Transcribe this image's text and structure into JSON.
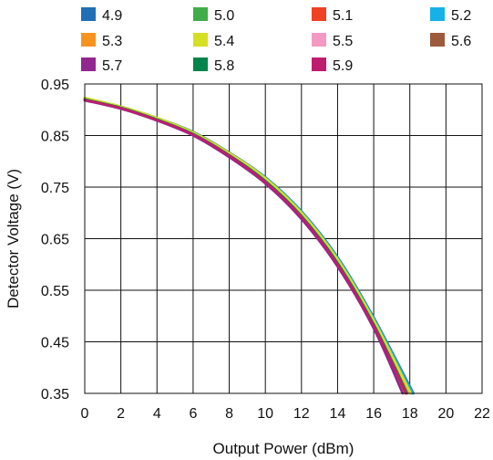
{
  "chart_data": {
    "type": "line",
    "title": "",
    "xlabel": "Output Power (dBm)",
    "ylabel": "Detector Voltage (V)",
    "xlim": [
      0,
      22
    ],
    "ylim": [
      0.35,
      0.95
    ],
    "xticks": [
      0,
      2,
      4,
      6,
      8,
      10,
      12,
      14,
      16,
      18,
      20,
      22
    ],
    "yticks": [
      0.35,
      0.45,
      0.55,
      0.65,
      0.75,
      0.85,
      0.95
    ],
    "x_tick_labels": [
      "0",
      "2",
      "4",
      "6",
      "8",
      "10",
      "12",
      "14",
      "16",
      "18",
      "20",
      "22"
    ],
    "y_tick_labels": [
      "0.35",
      "0.45",
      "0.55",
      "0.65",
      "0.75",
      "0.85",
      "0.95"
    ],
    "grid": true,
    "legend_position": "top",
    "series": [
      {
        "name": "4.9",
        "color": "#1f6fb5",
        "x": [
          0,
          2,
          4,
          6,
          8,
          10,
          12,
          14,
          16,
          18.2
        ],
        "y": [
          0.922,
          0.906,
          0.884,
          0.857,
          0.817,
          0.769,
          0.703,
          0.614,
          0.497,
          0.35
        ]
      },
      {
        "name": "5.0",
        "color": "#3fae49",
        "x": [
          0,
          2,
          4,
          6,
          8,
          10,
          12,
          14,
          16,
          18.1
        ],
        "y": [
          0.923,
          0.906,
          0.884,
          0.856,
          0.816,
          0.767,
          0.7,
          0.61,
          0.493,
          0.35
        ]
      },
      {
        "name": "5.1",
        "color": "#ef4123",
        "x": [
          0,
          2,
          4,
          6,
          8,
          10,
          12,
          14,
          16,
          18.0
        ],
        "y": [
          0.921,
          0.905,
          0.882,
          0.854,
          0.814,
          0.764,
          0.697,
          0.607,
          0.489,
          0.35
        ]
      },
      {
        "name": "5.2",
        "color": "#16b1e6",
        "x": [
          0,
          2,
          4,
          6,
          8,
          10,
          12,
          14,
          16,
          18.15
        ],
        "y": [
          0.921,
          0.905,
          0.883,
          0.856,
          0.816,
          0.768,
          0.702,
          0.612,
          0.495,
          0.35
        ]
      },
      {
        "name": "5.3",
        "color": "#f7941d",
        "x": [
          0,
          2,
          4,
          6,
          8,
          10,
          12,
          14,
          16,
          18.0
        ],
        "y": [
          0.922,
          0.905,
          0.883,
          0.855,
          0.815,
          0.765,
          0.698,
          0.606,
          0.488,
          0.35
        ]
      },
      {
        "name": "5.4",
        "color": "#d7df23",
        "x": [
          0,
          2,
          4,
          6,
          8,
          10,
          12,
          14,
          16,
          18.05
        ],
        "y": [
          0.923,
          0.906,
          0.884,
          0.856,
          0.816,
          0.767,
          0.7,
          0.61,
          0.492,
          0.35
        ]
      },
      {
        "name": "5.5",
        "color": "#f49ac2",
        "x": [
          0,
          2,
          4,
          6,
          8,
          10,
          12,
          14,
          16,
          17.7
        ],
        "y": [
          0.919,
          0.903,
          0.88,
          0.851,
          0.81,
          0.759,
          0.69,
          0.598,
          0.479,
          0.35
        ]
      },
      {
        "name": "5.6",
        "color": "#9e5a3c",
        "x": [
          0,
          2,
          4,
          6,
          8,
          10,
          12,
          14,
          16,
          17.75
        ],
        "y": [
          0.92,
          0.903,
          0.881,
          0.852,
          0.811,
          0.76,
          0.691,
          0.6,
          0.481,
          0.35
        ]
      },
      {
        "name": "5.7",
        "color": "#92278f",
        "x": [
          0,
          2,
          4,
          6,
          8,
          10,
          12,
          14,
          16,
          17.6
        ],
        "y": [
          0.918,
          0.902,
          0.879,
          0.85,
          0.808,
          0.757,
          0.688,
          0.596,
          0.476,
          0.35
        ]
      },
      {
        "name": "5.8",
        "color": "#00854a",
        "x": [
          0,
          2,
          4,
          6,
          8,
          10,
          12,
          14,
          16,
          17.85
        ],
        "y": [
          0.92,
          0.904,
          0.881,
          0.853,
          0.812,
          0.762,
          0.694,
          0.603,
          0.484,
          0.35
        ]
      },
      {
        "name": "5.9",
        "color": "#be1e6e",
        "x": [
          0,
          2,
          4,
          6,
          8,
          10,
          12,
          14,
          16,
          17.8
        ],
        "y": [
          0.919,
          0.903,
          0.88,
          0.852,
          0.811,
          0.76,
          0.692,
          0.6,
          0.481,
          0.35
        ]
      }
    ]
  }
}
